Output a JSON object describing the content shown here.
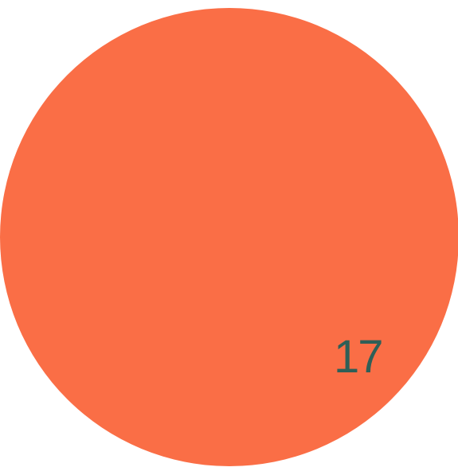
{
  "badge": {
    "number": "17"
  },
  "colors": {
    "circle_fill": "#FA6E46",
    "number_text": "#2F5F57",
    "background": "#FFFFFF"
  }
}
